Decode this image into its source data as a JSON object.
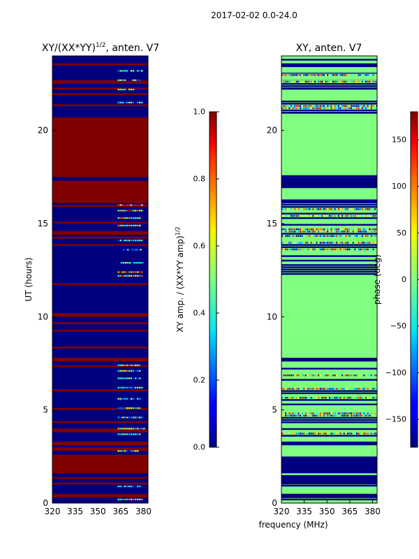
{
  "suptitle": "2017-02-02 0.0-24.0",
  "chart_data": [
    {
      "type": "heatmap",
      "title_main": "XY/(XX*YY)",
      "title_sup": "1/2",
      "title_tail": ", anten. V7",
      "ylabel": "UT (hours)",
      "xlabel": "",
      "xlim": [
        320,
        383
      ],
      "ylim": [
        0,
        24
      ],
      "xticks": [
        "320",
        "335",
        "350",
        "365",
        "380"
      ],
      "yticks": [
        "0",
        "5",
        "10",
        "15",
        "20"
      ],
      "colormap": "jet",
      "colorbar": {
        "label_main": "XY amp. / (XX*YY amp)",
        "label_sup": "1/2",
        "range": [
          0.0,
          1.0
        ],
        "ticks": [
          "0.0",
          "0.2",
          "0.4",
          "0.6",
          "0.8",
          "1.0"
        ]
      },
      "cells_hours_value_1": [
        [
          0.3,
          0.5
        ],
        [
          1.0,
          1.1
        ],
        [
          1.3,
          1.4
        ],
        [
          1.6,
          2.6
        ],
        [
          2.8,
          3.0
        ],
        [
          3.1,
          3.3
        ],
        [
          3.8,
          4.0
        ],
        [
          4.3,
          4.4
        ],
        [
          5.0,
          5.1
        ],
        [
          6.0,
          6.1
        ],
        [
          7.3,
          7.4
        ],
        [
          7.6,
          7.8
        ],
        [
          8.3,
          8.4
        ],
        [
          9.2,
          9.3
        ],
        [
          9.6,
          9.7
        ],
        [
          10.0,
          10.2
        ],
        [
          11.7,
          11.8
        ],
        [
          13.8,
          13.9
        ],
        [
          14.2,
          14.3
        ],
        [
          14.4,
          14.6
        ],
        [
          15.0,
          15.1
        ],
        [
          15.9,
          16.0
        ],
        [
          16.1,
          17.3
        ],
        [
          17.5,
          20.7
        ],
        [
          21.3,
          21.4
        ],
        [
          21.9,
          22.0
        ],
        [
          22.2,
          22.3
        ],
        [
          22.5,
          22.7
        ],
        [
          23.5,
          23.6
        ]
      ],
      "features_hours_freq_value": [
        [
          16.0,
          [
            363,
            381
          ],
          0.75
        ],
        [
          15.7,
          [
            363,
            379
          ],
          0.65
        ],
        [
          15.3,
          [
            363,
            377
          ],
          0.55
        ],
        [
          14.9,
          [
            363,
            377
          ],
          0.5
        ],
        [
          14.1,
          [
            363,
            379
          ],
          0.4
        ],
        [
          13.6,
          [
            365,
            378
          ],
          0.35
        ],
        [
          12.9,
          [
            365,
            379
          ],
          0.4
        ],
        [
          12.4,
          [
            363,
            379
          ],
          0.7
        ],
        [
          12.2,
          [
            363,
            379
          ],
          0.55
        ],
        [
          7.4,
          [
            363,
            378
          ],
          0.6
        ],
        [
          7.1,
          [
            363,
            377
          ],
          0.45
        ],
        [
          6.7,
          [
            363,
            377
          ],
          0.35
        ],
        [
          6.2,
          [
            363,
            379
          ],
          0.4
        ],
        [
          5.6,
          [
            363,
            377
          ],
          0.35
        ],
        [
          5.1,
          [
            363,
            377
          ],
          0.45
        ],
        [
          4.6,
          [
            363,
            379
          ],
          0.4
        ],
        [
          4.0,
          [
            363,
            381
          ],
          0.5
        ],
        [
          3.7,
          [
            363,
            377
          ],
          0.4
        ],
        [
          2.8,
          [
            363,
            377
          ],
          0.35
        ],
        [
          0.2,
          [
            363,
            379
          ],
          0.5
        ],
        [
          23.2,
          [
            363,
            379
          ],
          0.35
        ],
        [
          22.7,
          [
            363,
            377
          ],
          0.3
        ],
        [
          22.2,
          [
            363,
            379
          ],
          0.3
        ],
        [
          21.5,
          [
            363,
            379
          ],
          0.4
        ],
        [
          0.9,
          [
            363,
            377
          ],
          0.3
        ]
      ]
    },
    {
      "type": "heatmap",
      "title_main": "XY, anten. V7",
      "ylabel": "",
      "xlabel": "frequency (MHz)",
      "xlim": [
        320,
        383
      ],
      "ylim": [
        0,
        24
      ],
      "xticks": [
        "320",
        "335",
        "350",
        "365",
        "380"
      ],
      "yticks": [
        "0",
        "5",
        "10",
        "15",
        "20"
      ],
      "colormap": "jet",
      "colorbar": {
        "label_main": "phase (deg)",
        "range": [
          -180,
          180
        ],
        "ticks": [
          "−150",
          "−100",
          "−50",
          "0",
          "50",
          "100",
          "150"
        ]
      },
      "cells_hours_value_0": [
        [
          2.5,
          3.1
        ],
        [
          7.8,
          8.4
        ],
        [
          8.6,
          10.0
        ],
        [
          10.3,
          11.6
        ],
        [
          11.9,
          12.1
        ],
        [
          16.3,
          16.9
        ],
        [
          17.6,
          20.7
        ],
        [
          21.6,
          21.8
        ],
        [
          22.7,
          22.9
        ],
        [
          23.1,
          23.3
        ]
      ],
      "cells_hours_value_180": [
        [
          0.3,
          0.5
        ],
        [
          1.0,
          1.5
        ],
        [
          1.6,
          2.6
        ],
        [
          3.1,
          3.3
        ],
        [
          7.6,
          7.8
        ],
        [
          8.3,
          8.4
        ],
        [
          16.1,
          16.3
        ],
        [
          16.9,
          17.5
        ],
        [
          17.5,
          17.6
        ],
        [
          20.9,
          21.0
        ],
        [
          22.2,
          22.3
        ],
        [
          23.4,
          23.6
        ]
      ],
      "noise_rows_hours": [
        [
          0.0,
          0.3
        ],
        [
          0.5,
          1.0
        ],
        [
          3.3,
          7.6
        ],
        [
          12.1,
          16.1
        ],
        [
          21.0,
          21.6
        ],
        [
          21.8,
          22.2
        ],
        [
          22.3,
          22.7
        ],
        [
          22.9,
          23.1
        ],
        [
          23.6,
          24.0
        ]
      ]
    }
  ]
}
